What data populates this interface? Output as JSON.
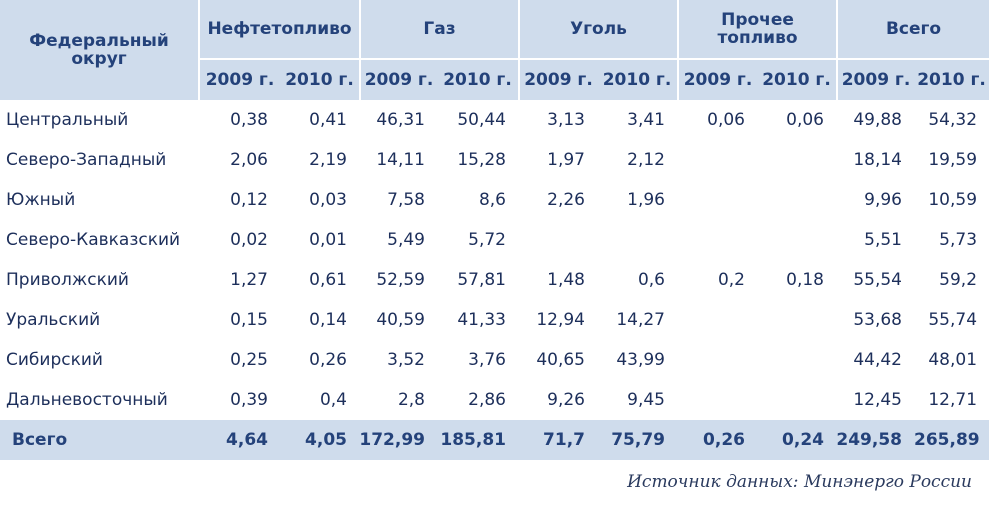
{
  "chart_data": {
    "type": "table",
    "header": {
      "district": "Федеральный округ",
      "groups": [
        "Нефтетопливо",
        "Газ",
        "Уголь",
        "Прочее топливо",
        "Всего"
      ],
      "years": [
        "2009 г.",
        "2010 г."
      ]
    },
    "rows": [
      {
        "name": "Центральный",
        "values": [
          "0,38",
          "0,41",
          "46,31",
          "50,44",
          "3,13",
          "3,41",
          "0,06",
          "0,06",
          "49,88",
          "54,32"
        ]
      },
      {
        "name": "Северо-Западный",
        "values": [
          "2,06",
          "2,19",
          "14,11",
          "15,28",
          "1,97",
          "2,12",
          "",
          "",
          "18,14",
          "19,59"
        ]
      },
      {
        "name": "Южный",
        "values": [
          "0,12",
          "0,03",
          "7,58",
          "8,6",
          "2,26",
          "1,96",
          "",
          "",
          "9,96",
          "10,59"
        ]
      },
      {
        "name": "Северо-Кавказский",
        "values": [
          "0,02",
          "0,01",
          "5,49",
          "5,72",
          "",
          "",
          "",
          "",
          "5,51",
          "5,73"
        ]
      },
      {
        "name": "Приволжский",
        "values": [
          "1,27",
          "0,61",
          "52,59",
          "57,81",
          "1,48",
          "0,6",
          "0,2",
          "0,18",
          "55,54",
          "59,2"
        ]
      },
      {
        "name": "Уральский",
        "values": [
          "0,15",
          "0,14",
          "40,59",
          "41,33",
          "12,94",
          "14,27",
          "",
          "",
          "53,68",
          "55,74"
        ]
      },
      {
        "name": "Сибирский",
        "values": [
          "0,25",
          "0,26",
          "3,52",
          "3,76",
          "40,65",
          "43,99",
          "",
          "",
          "44,42",
          "48,01"
        ]
      },
      {
        "name": "Дальневосточный",
        "values": [
          "0,39",
          "0,4",
          "2,8",
          "2,86",
          "9,26",
          "9,45",
          "",
          "",
          "12,45",
          "12,71"
        ]
      }
    ],
    "total": {
      "name": "Всего",
      "values": [
        "4,64",
        "4,05",
        "172,99",
        "185,81",
        "71,7",
        "75,79",
        "0,26",
        "0,24",
        "249,58",
        "265,89"
      ]
    },
    "source": "Источник данных: Минэнерго России"
  }
}
